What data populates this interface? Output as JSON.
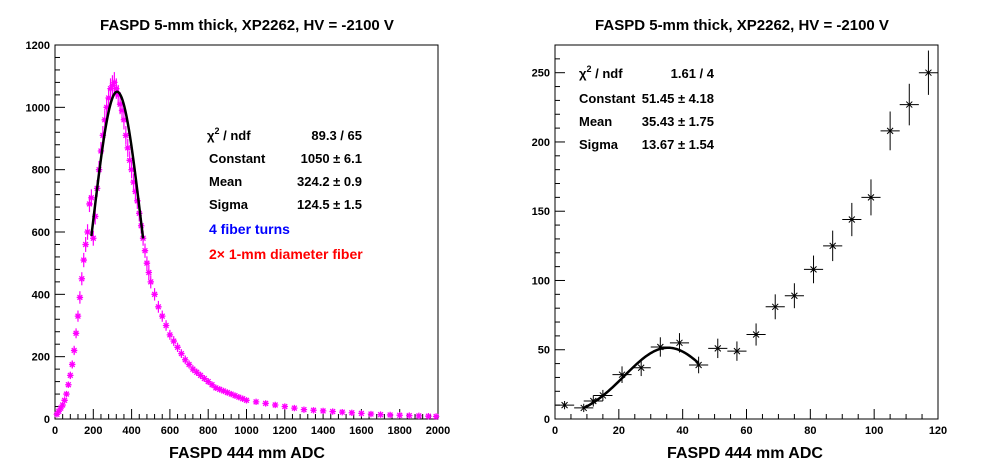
{
  "chart_data": [
    {
      "type": "scatter",
      "title": "FASPD 5-mm thick, XP2262, HV = -2100 V",
      "xlabel": "FASPD 444 mm ADC",
      "ylabel": "",
      "xlim": [
        0,
        2000
      ],
      "ylim": [
        0,
        1200
      ],
      "xticks": [
        "0",
        "200",
        "400",
        "600",
        "800",
        "1000",
        "1200",
        "1400",
        "1600",
        "1800",
        "2000"
      ],
      "yticks": [
        "0",
        "200",
        "400",
        "600",
        "800",
        "1000",
        "1200"
      ],
      "grid": false,
      "marker_color": "#ff00ff",
      "fit_color": "#000000",
      "series": [
        {
          "x": [
            10,
            20,
            30,
            40,
            50,
            60,
            70,
            80,
            90,
            100,
            110,
            120,
            130,
            140,
            150,
            160,
            170,
            180,
            190,
            200,
            210,
            220,
            230,
            240,
            250,
            260,
            270,
            280,
            290,
            300,
            310,
            320,
            330,
            340,
            350,
            360,
            370,
            380,
            390,
            400,
            410,
            420,
            430,
            440,
            450,
            460,
            470,
            480,
            490,
            500,
            520,
            540,
            560,
            580,
            600,
            620,
            640,
            660,
            680,
            700,
            720,
            740,
            760,
            780,
            800,
            820,
            840,
            860,
            880,
            900,
            920,
            940,
            960,
            980,
            1000,
            1050,
            1100,
            1150,
            1200,
            1250,
            1300,
            1350,
            1400,
            1450,
            1500,
            1550,
            1600,
            1650,
            1700,
            1750,
            1800,
            1850,
            1900,
            1950,
            1990
          ],
          "y": [
            15,
            25,
            35,
            45,
            60,
            80,
            110,
            140,
            175,
            220,
            275,
            330,
            390,
            450,
            510,
            560,
            600,
            690,
            710,
            580,
            650,
            740,
            800,
            860,
            910,
            960,
            1000,
            1030,
            1060,
            1070,
            1080,
            1060,
            1040,
            1010,
            990,
            960,
            910,
            870,
            830,
            800,
            760,
            730,
            700,
            660,
            620,
            580,
            540,
            500,
            470,
            440,
            400,
            360,
            330,
            300,
            270,
            250,
            230,
            210,
            190,
            175,
            160,
            150,
            140,
            130,
            120,
            110,
            100,
            95,
            90,
            85,
            80,
            75,
            70,
            65,
            60,
            55,
            50,
            45,
            40,
            35,
            30,
            28,
            26,
            24,
            22,
            20,
            18,
            16,
            14,
            13,
            12,
            11,
            10,
            9,
            8
          ],
          "yerr": [
            4,
            5,
            6,
            7,
            8,
            9,
            10,
            12,
            13,
            15,
            16,
            18,
            20,
            21,
            23,
            24,
            25,
            26,
            27,
            24,
            26,
            27,
            28,
            29,
            30,
            31,
            32,
            32,
            33,
            33,
            33,
            33,
            32,
            32,
            31,
            31,
            30,
            29,
            29,
            28,
            28,
            27,
            26,
            26,
            25,
            24,
            23,
            22,
            22,
            21,
            20,
            19,
            18,
            17,
            16,
            16,
            15,
            14,
            14,
            13,
            13,
            12,
            12,
            11,
            11,
            10,
            10,
            10,
            9,
            9,
            9,
            9,
            8,
            8,
            8,
            7,
            7,
            7,
            6,
            6,
            5,
            5,
            5,
            5,
            5,
            4,
            4,
            4,
            4,
            4,
            3,
            3,
            3,
            3,
            3
          ]
        }
      ],
      "fit": {
        "function": "gaus",
        "constant": 1050,
        "mean": 324.2,
        "sigma": 124.5,
        "range": [
          190,
          460
        ]
      },
      "stats": [
        {
          "label": "χ² / ndf",
          "value": "89.3 / 65"
        },
        {
          "label": "Constant",
          "value": "1050 ± 6.1"
        },
        {
          "label": "Mean",
          "value": "324.2 ± 0.9"
        },
        {
          "label": "Sigma",
          "value": "124.5 ± 1.5"
        }
      ],
      "annotations": [
        {
          "text": "4 fiber turns",
          "color": "#0000ff"
        },
        {
          "text": "2× 1-mm diameter fiber",
          "color": "#ff0000"
        }
      ]
    },
    {
      "type": "scatter",
      "title": "FASPD 5-mm thick, XP2262, HV = -2100 V",
      "xlabel": "FASPD 444 mm ADC",
      "ylabel": "",
      "xlim": [
        0,
        120
      ],
      "ylim": [
        0,
        270
      ],
      "xticks": [
        "0",
        "20",
        "40",
        "60",
        "80",
        "100",
        "120"
      ],
      "yticks": [
        "0",
        "50",
        "100",
        "150",
        "200",
        "250"
      ],
      "grid": false,
      "marker_color": "#000000",
      "fit_color": "#000000",
      "series": [
        {
          "x": [
            3,
            9,
            12,
            15,
            21,
            27,
            33,
            39,
            45,
            51,
            57,
            63,
            69,
            75,
            81,
            87,
            93,
            99,
            105,
            111,
            117
          ],
          "xerr": [
            3,
            3,
            3,
            3,
            3,
            3,
            3,
            3,
            3,
            3,
            3,
            3,
            3,
            3,
            3,
            3,
            3,
            3,
            3,
            3,
            3
          ],
          "y": [
            10,
            8,
            13,
            17,
            32,
            37,
            52,
            55,
            39,
            51,
            49,
            61,
            81,
            89,
            108,
            125,
            144,
            160,
            208,
            227,
            250
          ],
          "yerr": [
            3,
            3,
            4,
            4,
            6,
            6,
            7,
            7,
            6,
            7,
            7,
            8,
            9,
            9,
            10,
            11,
            12,
            13,
            14,
            15,
            16
          ]
        }
      ],
      "fit": {
        "function": "gaus",
        "constant": 51.45,
        "mean": 35.43,
        "sigma": 13.67,
        "range": [
          9,
          45
        ]
      },
      "stats": [
        {
          "label": "χ² / ndf",
          "value": "1.61 / 4"
        },
        {
          "label": "Constant",
          "value": "51.45 ± 4.18"
        },
        {
          "label": "Mean",
          "value": "35.43 ± 1.75"
        },
        {
          "label": "Sigma",
          "value": "13.67 ± 1.54"
        }
      ]
    }
  ]
}
